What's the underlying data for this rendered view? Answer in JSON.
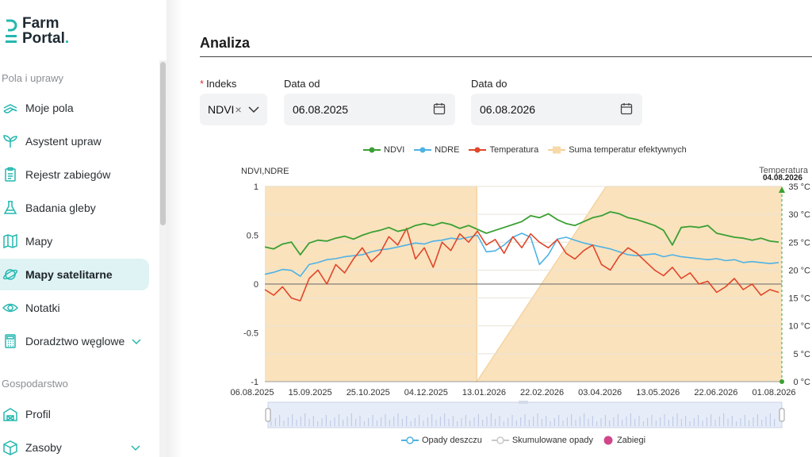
{
  "brand": {
    "line1": "Farm",
    "line2": "Portal",
    "dot": ".",
    "accent": "#25b7b0"
  },
  "sidebar": {
    "sections": [
      {
        "label": "Pola i uprawy"
      },
      {
        "label": "Gospodarstwo"
      }
    ],
    "items": [
      {
        "label": "Moje pola",
        "icon": "fields-icon"
      },
      {
        "label": "Asystent upraw",
        "icon": "sprout-icon"
      },
      {
        "label": "Rejestr zabiegów",
        "icon": "clipboard-icon"
      },
      {
        "label": "Badania gleby",
        "icon": "flask-icon"
      },
      {
        "label": "Mapy",
        "icon": "map-icon"
      },
      {
        "label": "Mapy satelitarne",
        "icon": "planet-icon",
        "active": true
      },
      {
        "label": "Notatki",
        "icon": "eye-icon"
      },
      {
        "label": "Doradztwo węglowe",
        "icon": "calculator-icon",
        "expandable": true
      },
      {
        "label": "Profil",
        "icon": "barn-icon"
      },
      {
        "label": "Zasoby",
        "icon": "box-icon",
        "expandable": true
      }
    ]
  },
  "page": {
    "title": "Analiza"
  },
  "filters": {
    "index_label": "Indeks",
    "index_value": "NDVI",
    "index_clear": "×",
    "date_from_label": "Data od",
    "date_from_value": "06.08.2025",
    "date_to_label": "Data do",
    "date_to_value": "06.08.2026"
  },
  "chart_data": {
    "type": "line",
    "left_axis_label": "NDVI,NDRE",
    "right_axis_label": "Temperatura",
    "marker_label": "04.08.2026",
    "ylim_left": [
      -1,
      1
    ],
    "left_ticks": [
      "1",
      "0.5",
      "0",
      "-0.5",
      "-1"
    ],
    "ylim_right": [
      0,
      35
    ],
    "right_ticks": [
      "35 °C",
      "30 °C",
      "25 °C",
      "20 °C",
      "15 °C",
      "10 °C",
      "5 °C",
      "0 °C"
    ],
    "x_ticks": [
      "06.08.2025",
      "15.09.2025",
      "25.10.2025",
      "04.12.2025",
      "13.01.2026",
      "22.02.2026",
      "03.04.2026",
      "13.05.2026",
      "22.06.2026",
      "01.08.2026"
    ],
    "legend_top": [
      {
        "name": "NDVI",
        "color": "#3aa032"
      },
      {
        "name": "NDRE",
        "color": "#4fb2e3"
      },
      {
        "name": "Temperatura",
        "color": "#e0462a"
      },
      {
        "name": "Suma temperatur efektywnych",
        "color": "#f7d9a8"
      }
    ],
    "legend_bottom": [
      {
        "name": "Opady deszczu",
        "color": "#4fb2e3"
      },
      {
        "name": "Skumulowane opady",
        "color": "#c8c8c8"
      },
      {
        "name": "Zabiegi",
        "color": "#d0468a"
      }
    ],
    "ndvi": [
      0.38,
      0.36,
      0.41,
      0.43,
      0.3,
      0.42,
      0.45,
      0.44,
      0.47,
      0.49,
      0.46,
      0.5,
      0.53,
      0.55,
      0.58,
      0.54,
      0.56,
      0.6,
      0.62,
      0.6,
      0.63,
      0.61,
      0.57,
      0.6,
      0.56,
      0.52,
      0.55,
      0.58,
      0.61,
      0.64,
      0.7,
      0.68,
      0.72,
      0.66,
      0.62,
      0.6,
      0.64,
      0.68,
      0.7,
      0.74,
      0.72,
      0.68,
      0.66,
      0.63,
      0.6,
      0.55,
      0.4,
      0.58,
      0.59,
      0.58,
      0.6,
      0.52,
      0.5,
      0.48,
      0.47,
      0.45,
      0.47,
      0.44,
      0.43
    ],
    "ndre": [
      0.1,
      0.12,
      0.15,
      0.14,
      0.08,
      0.2,
      0.22,
      0.25,
      0.26,
      0.28,
      0.29,
      0.3,
      0.33,
      0.35,
      0.36,
      0.38,
      0.4,
      0.42,
      0.41,
      0.44,
      0.45,
      0.47,
      0.46,
      0.48,
      0.5,
      0.33,
      0.34,
      0.4,
      0.48,
      0.52,
      0.48,
      0.2,
      0.3,
      0.46,
      0.48,
      0.45,
      0.42,
      0.4,
      0.38,
      0.36,
      0.33,
      0.3,
      0.29,
      0.3,
      0.31,
      0.28,
      0.3,
      0.28,
      0.27,
      0.26,
      0.25,
      0.26,
      0.24,
      0.25,
      0.22,
      0.23,
      0.22,
      0.21,
      0.22
    ],
    "temperatura": [
      16.5,
      15.5,
      17.0,
      15.0,
      14.5,
      18.5,
      20.0,
      17.5,
      21.0,
      19.5,
      22.0,
      24.0,
      21.5,
      23.0,
      26.0,
      24.5,
      27.5,
      22.0,
      24.0,
      20.5,
      25.0,
      23.5,
      26.5,
      25.0,
      27.0,
      24.5,
      25.5,
      23.0,
      26.0,
      24.0,
      26.5,
      25.0,
      24.0,
      25.5,
      23.0,
      22.0,
      23.5,
      24.5,
      21.0,
      20.0,
      22.5,
      24.0,
      23.0,
      21.5,
      20.0,
      19.0,
      20.5,
      18.5,
      19.5,
      17.5,
      18.0,
      16.0,
      17.0,
      18.5,
      16.5,
      17.5,
      15.5,
      16.5,
      16.0
    ],
    "suma_temperatur": [
      [
        0.0,
        35
      ],
      [
        0.41,
        35
      ],
      [
        0.41,
        0
      ],
      [
        0.66,
        35
      ],
      [
        1.0,
        35
      ]
    ]
  }
}
